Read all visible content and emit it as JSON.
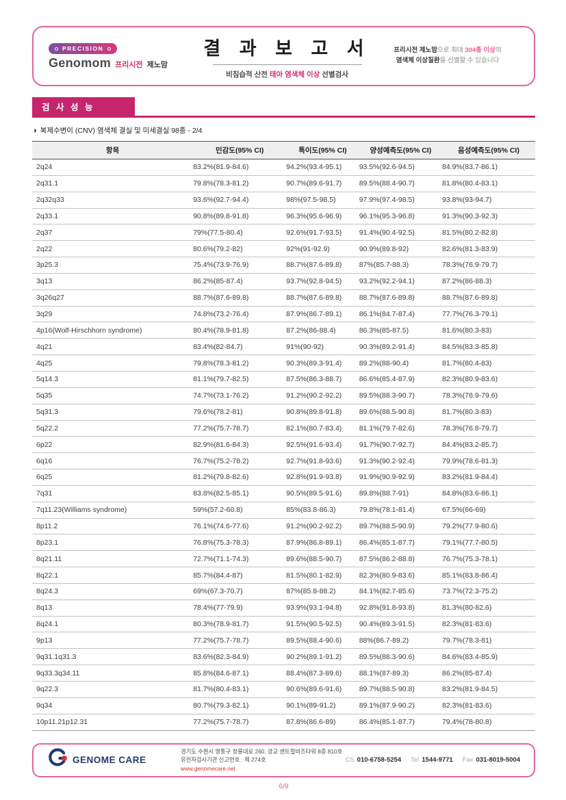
{
  "brand": {
    "precision_label": "PRECISION",
    "logo_en": "Genomom",
    "logo_ko_highlight": "프리시전",
    "logo_ko": "제노맘"
  },
  "header": {
    "title": "결 과 보 고 서",
    "subtitle_prefix": "비침습적 산전 ",
    "subtitle_highlight": "태아 염색체 이상",
    "subtitle_suffix": " 선별검사",
    "promo_line1_bold": "프리시전 제노맘",
    "promo_line1_normal": "으로 최대 ",
    "promo_line1_pink": "304종 이상",
    "promo_line1_end": "의",
    "promo_line2_bold": "염색체 이상질환",
    "promo_line2_normal": "을 선별할 수 있습니다"
  },
  "section": {
    "title": "검 사 성 능",
    "caption_icon": "◑",
    "caption": "복제수변이 (CNV) 염색체 결실 및 미세결실 98종 - 2/4"
  },
  "table": {
    "columns": [
      "항목",
      "민감도(95% CI)",
      "특이도(95% CI)",
      "양성예측도(95% CI)",
      "음성예측도(95% CI)"
    ],
    "rows": [
      [
        "2q24",
        "83.2%(81.9-84.6)",
        "94.2%(93.4-95.1)",
        "93.5%(92.6-94.5)",
        "84.9%(83.7-86.1)"
      ],
      [
        "2q31.1",
        "79.8%(78.3-81.2)",
        "90.7%(89.6-91.7)",
        "89.5%(88.4-90.7)",
        "81.8%(80.4-83.1)"
      ],
      [
        "2q32q33",
        "93.6%(92.7-94.4)",
        "98%(97.5-98.5)",
        "97.9%(97.4-98.5)",
        "93.8%(93-94.7)"
      ],
      [
        "2q33.1",
        "90.8%(89.8-91.8)",
        "96.3%(95.6-96.9)",
        "96.1%(95.3-96.8)",
        "91.3%(90.3-92.3)"
      ],
      [
        "2q37",
        "79%(77.5-80.4)",
        "92.6%(91.7-93.5)",
        "91.4%(90.4-92.5)",
        "81.5%(80.2-82.8)"
      ],
      [
        "2q22",
        "80.6%(79.2-82)",
        "92%(91-92.9)",
        "90.9%(89.8-92)",
        "82.6%(81.3-83.9)"
      ],
      [
        "3p25.3",
        "75.4%(73.9-76.9)",
        "88.7%(87.6-89.8)",
        "87%(85.7-88.3)",
        "78.3%(76.9-79.7)"
      ],
      [
        "3q13",
        "86.2%(85-87.4)",
        "93.7%(92.8-94.5)",
        "93.2%(92.2-94.1)",
        "87.2%(86-88.3)"
      ],
      [
        "3q26q27",
        "88.7%(87.6-89.8)",
        "88.7%(87.6-89.8)",
        "88.7%(87.6-89.8)",
        "88.7%(87.6-89.8)"
      ],
      [
        "3q29",
        "74.8%(73.2-76.4)",
        "87.9%(86.7-89.1)",
        "86.1%(84.7-87.4)",
        "77.7%(76.3-79.1)"
      ],
      [
        "4p16(Wolf-Hirschhorn syndrome)",
        "80.4%(78.9-81.8)",
        "87.2%(86-88.4)",
        "86.3%(85-87.5)",
        "81.6%(80.3-83)"
      ],
      [
        "4q21",
        "83.4%(82-84.7)",
        "91%(90-92)",
        "90.3%(89.2-91.4)",
        "84.5%(83.3-85.8)"
      ],
      [
        "4q25",
        "79.8%(78.3-81.2)",
        "90.3%(89.3-91.4)",
        "89.2%(88-90.4)",
        "81.7%(80.4-83)"
      ],
      [
        "5q14.3",
        "81.1%(79.7-82.5)",
        "87.5%(86.3-88.7)",
        "86.6%(85.4-87.9)",
        "82.3%(80.9-83.6)"
      ],
      [
        "5q35",
        "74.7%(73.1-76.2)",
        "91.2%(90.2-92.2)",
        "89.5%(88.3-90.7)",
        "78.3%(76.9-79.6)"
      ],
      [
        "5q31.3",
        "79.6%(78.2-81)",
        "90.8%(89.8-91.8)",
        "89.6%(88.5-90.8)",
        "81.7%(80.3-83)"
      ],
      [
        "5q22.2",
        "77.2%(75.7-78.7)",
        "82.1%(80.7-83.4)",
        "81.1%(79.7-82.6)",
        "78.3%(76.8-79.7)"
      ],
      [
        "6p22",
        "82.9%(81.6-84.3)",
        "92.5%(91.6-93.4)",
        "91.7%(90.7-92.7)",
        "84.4%(83.2-85.7)"
      ],
      [
        "6q16",
        "76.7%(75.2-78.2)",
        "92.7%(91.8-93.6)",
        "91.3%(90.2-92.4)",
        "79.9%(78.6-81.3)"
      ],
      [
        "6q25",
        "81.2%(79.8-82.6)",
        "92.8%(91.9-93.8)",
        "91.9%(90.9-92.9)",
        "83.2%(81.9-84.4)"
      ],
      [
        "7q31",
        "83.8%(82.5-85.1)",
        "90.5%(89.5-91.6)",
        "89.8%(88.7-91)",
        "84.8%(83.6-86.1)"
      ],
      [
        "7q11.23(Williams syndrome)",
        "59%(57.2-60.8)",
        "85%(83.8-86.3)",
        "79.8%(78.1-81.4)",
        "67.5%(66-69)"
      ],
      [
        "8p11.2",
        "76.1%(74.6-77.6)",
        "91.2%(90.2-92.2)",
        "89.7%(88.5-90.9)",
        "79.2%(77.9-80.6)"
      ],
      [
        "8p23.1",
        "76.8%(75.3-78.3)",
        "87.9%(86.8-89.1)",
        "86.4%(85.1-87.7)",
        "79.1%(77.7-80.5)"
      ],
      [
        "8q21.11",
        "72.7%(71.1-74.3)",
        "89.6%(88.5-90.7)",
        "87.5%(86.2-88.8)",
        "76.7%(75.3-78.1)"
      ],
      [
        "8q22.1",
        "85.7%(84.4-87)",
        "81.5%(80.1-82.9)",
        "82.3%(80.9-83.6)",
        "85.1%(83.8-86.4)"
      ],
      [
        "8q24.3",
        "69%(67.3-70.7)",
        "87%(85.8-88.2)",
        "84.1%(82.7-85.6)",
        "73.7%(72.3-75.2)"
      ],
      [
        "8q13",
        "78.4%(77-79.9)",
        "93.9%(93.1-94.8)",
        "92.8%(91.8-93.8)",
        "81.3%(80-82.6)"
      ],
      [
        "8q24.1",
        "80.3%(78.9-81.7)",
        "91.5%(90.5-92.5)",
        "90.4%(89.3-91.5)",
        "82.3%(81-83.6)"
      ],
      [
        "9p13",
        "77.2%(75.7-78.7)",
        "89.5%(88.4-90.6)",
        "88%(86.7-89.2)",
        "79.7%(78.3-81)"
      ],
      [
        "9q31.1q31.3",
        "83.6%(82.3-84.9)",
        "90.2%(89.1-91.2)",
        "89.5%(88.3-90.6)",
        "84.6%(83.4-85.9)"
      ],
      [
        "9q33.3q34.11",
        "85.8%(84.6-87.1)",
        "88.4%(87.3-89.6)",
        "88.1%(87-89.3)",
        "86.2%(85-87.4)"
      ],
      [
        "9q22.3",
        "81.7%(80.4-83.1)",
        "90.6%(89.6-91.6)",
        "89.7%(88.5-90.8)",
        "83.2%(81.9-84.5)"
      ],
      [
        "9q34",
        "80.7%(79.3-82.1)",
        "90.1%(89-91.2)",
        "89.1%(87.9-90.2)",
        "82.3%(81-83.6)"
      ],
      [
        "10p11.21p12.31",
        "77.2%(75.7-78.7)",
        "87.8%(86.6-89)",
        "86.4%(85.1-87.7)",
        "79.4%(78-80.8)"
      ]
    ]
  },
  "footer": {
    "company": "GENOME CARE",
    "address1": "경기도 수원시 영통구 창룡대로 260, 광교 센트럴비즈타워 8층 810호",
    "address2": "유전자검사기관 신고번호 : 제 274호",
    "website": "www.genomecare.net",
    "cs_label": "CS",
    "cs_number": "010-6758-5254",
    "tel_label": "Tel",
    "tel_number": "1544-9771",
    "fax_label": "Fax",
    "fax_number": "031-8019-5004",
    "page": "6/9"
  }
}
